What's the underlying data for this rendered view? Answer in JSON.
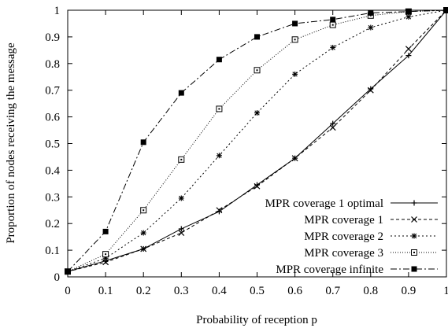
{
  "chart_data": {
    "type": "line",
    "xlabel": "Probability of reception p",
    "ylabel": "Proportion of nodes receiving the message",
    "xlim": [
      0,
      1
    ],
    "ylim": [
      0,
      1
    ],
    "x_ticks": [
      "0",
      "0.1",
      "0.2",
      "0.3",
      "0.4",
      "0.5",
      "0.6",
      "0.7",
      "0.8",
      "0.9",
      "1"
    ],
    "y_ticks": [
      "0",
      "0.1",
      "0.2",
      "0.3",
      "0.4",
      "0.5",
      "0.6",
      "0.7",
      "0.8",
      "0.9",
      "1"
    ],
    "grid": false,
    "legend_position": "bottom-right",
    "x": [
      0,
      0.1,
      0.2,
      0.3,
      0.4,
      0.5,
      0.6,
      0.7,
      0.8,
      0.9,
      1
    ],
    "series": [
      {
        "name": "MPR coverage 1 optimal",
        "marker": "plus",
        "dash": "solid",
        "values": [
          0.02,
          0.06,
          0.105,
          0.18,
          0.245,
          0.345,
          0.445,
          0.575,
          0.705,
          0.83,
          1.0
        ]
      },
      {
        "name": "MPR coverage 1",
        "marker": "x",
        "dash": "dashed",
        "values": [
          0.02,
          0.055,
          0.105,
          0.165,
          0.25,
          0.34,
          0.445,
          0.56,
          0.7,
          0.855,
          1.0
        ]
      },
      {
        "name": "MPR coverage 2",
        "marker": "star",
        "dash": "dotted",
        "values": [
          0.02,
          0.07,
          0.165,
          0.295,
          0.455,
          0.615,
          0.76,
          0.86,
          0.935,
          0.975,
          1.0
        ]
      },
      {
        "name": "MPR coverage 3",
        "marker": "open-square",
        "dash": "fine-dotted",
        "values": [
          0.02,
          0.085,
          0.25,
          0.44,
          0.63,
          0.775,
          0.89,
          0.945,
          0.98,
          0.995,
          1.0
        ]
      },
      {
        "name": "MPR coverage infinite",
        "marker": "filled-square",
        "dash": "dash-dot",
        "values": [
          0.02,
          0.17,
          0.505,
          0.69,
          0.815,
          0.9,
          0.95,
          0.965,
          0.99,
          0.995,
          1.0
        ]
      }
    ]
  }
}
